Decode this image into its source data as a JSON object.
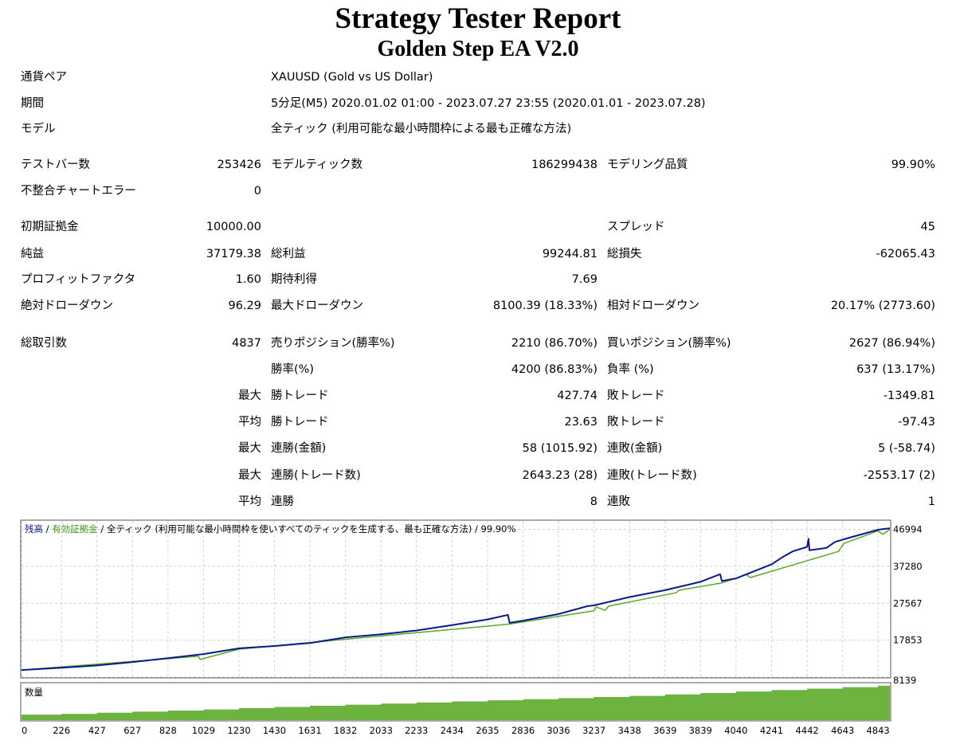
{
  "header": {
    "title": "Strategy Tester Report",
    "subtitle": "Golden Step EA V2.0"
  },
  "info": {
    "symbol_label": "通貨ペア",
    "symbol_value": "XAUUSD (Gold vs US Dollar)",
    "period_label": "期間",
    "period_value": "5分足(M5) 2020.01.02 01:00 - 2023.07.27 23:55 (2020.01.01 - 2023.07.28)",
    "model_label": "モデル",
    "model_value": "全ティック (利用可能な最小時間枠による最も正確な方法)"
  },
  "stats": {
    "bars_label": "テストバー数",
    "bars_value": "253426",
    "ticks_label": "モデルティック数",
    "ticks_value": "186299438",
    "quality_label": "モデリング品質",
    "quality_value": "99.90%",
    "mismatch_label": "不整合チャートエラー",
    "mismatch_value": "0",
    "deposit_label": "初期証拠金",
    "deposit_value": "10000.00",
    "spread_label": "スプレッド",
    "spread_value": "45",
    "net_label": "純益",
    "net_value": "37179.38",
    "gross_profit_label": "総利益",
    "gross_profit_value": "99244.81",
    "gross_loss_label": "総損失",
    "gross_loss_value": "-62065.43",
    "pf_label": "プロフィットファクタ",
    "pf_value": "1.60",
    "payoff_label": "期待利得",
    "payoff_value": "7.69",
    "abs_dd_label": "絶対ドローダウン",
    "abs_dd_value": "96.29",
    "max_dd_label": "最大ドローダウン",
    "max_dd_value": "8100.39 (18.33%)",
    "rel_dd_label": "相対ドローダウン",
    "rel_dd_value": "20.17% (2773.60)",
    "trades_label": "総取引数",
    "trades_value": "4837",
    "short_label": "売りポジション(勝率%)",
    "short_value": "2210 (86.70%)",
    "long_label": "買いポジション(勝率%)",
    "long_value": "2627 (86.94%)",
    "win_pct_label": "勝率(%)",
    "win_pct_value": "4200 (86.83%)",
    "loss_pct_label": "負率 (%)",
    "loss_pct_value": "637 (13.17%)",
    "max_prefix": "最大",
    "avg_prefix": "平均",
    "largest_win_label": "勝トレード",
    "largest_win_value": "427.74",
    "largest_loss_label": "敗トレード",
    "largest_loss_value": "-1349.81",
    "avg_win_label": "勝トレード",
    "avg_win_value": "23.63",
    "avg_loss_label": "敗トレード",
    "avg_loss_value": "-97.43",
    "max_consec_win_money_label": "連勝(金額)",
    "max_consec_win_money_value": "58 (1015.92)",
    "max_consec_loss_money_label": "連敗(金額)",
    "max_consec_loss_money_value": "5 (-58.74)",
    "max_consec_win_count_label": "連勝(トレード数)",
    "max_consec_win_count_value": "2643.23 (28)",
    "max_consec_loss_count_label": "連敗(トレード数)",
    "max_consec_loss_count_value": "-2553.17 (2)",
    "avg_consec_win_label": "連勝",
    "avg_consec_win_value": "8",
    "avg_consec_loss_label": "連敗",
    "avg_consec_loss_value": "1"
  },
  "colors": {
    "balance": "#0a1a8c",
    "equity": "#5aa82a",
    "volume": "#6db33f",
    "grid": "#d0d0d0"
  },
  "chart_data": {
    "type": "line",
    "legend": {
      "balance": "残高",
      "sep1": " / ",
      "equity": "有効証拠金",
      "rest": " / 全ティック (利用可能な最小時間枠を使いすべてのティックを生成する、最も正確な方法) / 99.90%"
    },
    "volume_label": "数量",
    "y_ticks": [
      46994,
      37280,
      27567,
      17853,
      8139
    ],
    "y_range": [
      8139,
      49200
    ],
    "x_ticks": [
      0,
      226,
      427,
      627,
      828,
      1029,
      1230,
      1430,
      1631,
      1832,
      2033,
      2233,
      2434,
      2635,
      2836,
      3036,
      3237,
      3438,
      3639,
      3839,
      4040,
      4241,
      4442,
      4643,
      4843
    ],
    "x_range": [
      0,
      4910
    ],
    "series": [
      {
        "key": "balance",
        "points": [
          [
            0,
            10000
          ],
          [
            226,
            10600
          ],
          [
            427,
            11200
          ],
          [
            627,
            12100
          ],
          [
            828,
            13100
          ],
          [
            1029,
            14200
          ],
          [
            1230,
            15700
          ],
          [
            1430,
            16300
          ],
          [
            1631,
            17100
          ],
          [
            1832,
            18600
          ],
          [
            2033,
            19400
          ],
          [
            2233,
            20400
          ],
          [
            2434,
            21800
          ],
          [
            2635,
            23300
          ],
          [
            2750,
            24500
          ],
          [
            2760,
            22400
          ],
          [
            2836,
            23000
          ],
          [
            3036,
            24700
          ],
          [
            3200,
            26800
          ],
          [
            3237,
            27000
          ],
          [
            3438,
            29200
          ],
          [
            3639,
            31000
          ],
          [
            3839,
            33200
          ],
          [
            3950,
            35200
          ],
          [
            3960,
            33400
          ],
          [
            4040,
            34100
          ],
          [
            4241,
            37800
          ],
          [
            4300,
            39600
          ],
          [
            4360,
            41200
          ],
          [
            4442,
            42400
          ],
          [
            4450,
            44500
          ],
          [
            4455,
            41500
          ],
          [
            4550,
            42100
          ],
          [
            4600,
            43700
          ],
          [
            4643,
            44300
          ],
          [
            4843,
            46900
          ],
          [
            4910,
            47300
          ]
        ]
      },
      {
        "key": "equity",
        "points": [
          [
            0,
            10000
          ],
          [
            1000,
            13600
          ],
          [
            1010,
            12800
          ],
          [
            1230,
            15500
          ],
          [
            2760,
            22100
          ],
          [
            3237,
            25600
          ],
          [
            3250,
            26600
          ],
          [
            3300,
            25700
          ],
          [
            3320,
            26800
          ],
          [
            3700,
            30300
          ],
          [
            3720,
            31000
          ],
          [
            3960,
            32900
          ],
          [
            4100,
            35100
          ],
          [
            4120,
            34300
          ],
          [
            4620,
            41200
          ],
          [
            4650,
            43300
          ],
          [
            4843,
            46600
          ],
          [
            4870,
            45700
          ],
          [
            4910,
            47000
          ]
        ]
      }
    ],
    "volume_fraction": [
      [
        0,
        0.15
      ],
      [
        226,
        0.17
      ],
      [
        427,
        0.2
      ],
      [
        627,
        0.23
      ],
      [
        828,
        0.26
      ],
      [
        1029,
        0.29
      ],
      [
        1230,
        0.33
      ],
      [
        1430,
        0.36
      ],
      [
        1631,
        0.39
      ],
      [
        1832,
        0.42
      ],
      [
        2033,
        0.45
      ],
      [
        2233,
        0.48
      ],
      [
        2434,
        0.51
      ],
      [
        2635,
        0.54
      ],
      [
        2836,
        0.57
      ],
      [
        3036,
        0.6
      ],
      [
        3237,
        0.63
      ],
      [
        3438,
        0.66
      ],
      [
        3639,
        0.7
      ],
      [
        3839,
        0.74
      ],
      [
        4040,
        0.78
      ],
      [
        4241,
        0.82
      ],
      [
        4442,
        0.86
      ],
      [
        4643,
        0.9
      ],
      [
        4843,
        0.94
      ],
      [
        4910,
        0.95
      ]
    ]
  }
}
